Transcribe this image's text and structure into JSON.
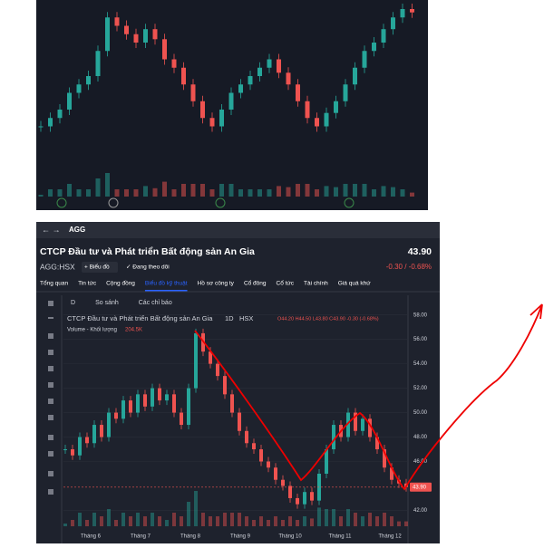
{
  "top_chart": {
    "closes": [
      30,
      35,
      40,
      50,
      55,
      60,
      75,
      95,
      90,
      85,
      80,
      88,
      82,
      70,
      65,
      55,
      45,
      35,
      30,
      40,
      50,
      55,
      60,
      65,
      70,
      62,
      55,
      45,
      35,
      30,
      38,
      45,
      55,
      65,
      75,
      80,
      88,
      95,
      100,
      98
    ]
  },
  "app": {
    "nav_symbol": "AGG",
    "company": "CTCP Đầu tư và Phát triển Bất động sản An Gia",
    "price": "43.90",
    "ticker": "AGG:HSX",
    "add_chart": "+ Biểu đồ",
    "following": "✓ Đang theo dõi",
    "change": "-0.30 / -0.68%",
    "tabs": [
      "Tổng quan",
      "Tin tức",
      "Cộng đồng",
      "Biểu đồ kỹ thuật",
      "Hồ sơ công ty",
      "Cổ đông",
      "Cổ tức",
      "Tài chính",
      "Giá quá khứ"
    ],
    "active_tab": 3,
    "toolbar": [
      "D",
      "So sánh",
      "Các chỉ báo"
    ]
  },
  "chart_data": {
    "type": "candlestick",
    "title": "CTCP Đầu tư và Phát triển Bất động sản An Gia",
    "interval": "1D",
    "exchange": "HSX",
    "ohlc": "O44.20 H44.50 L43.80 C43.90 -0.30 (-0.68%)",
    "volume_label": "Volume - Khối lượng",
    "volume_value": "204.5K",
    "categories": [
      "Tháng 6",
      "Tháng 7",
      "Tháng 8",
      "Tháng 9",
      "Tháng 10",
      "Tháng 11",
      "Tháng 12"
    ],
    "closes": [
      47,
      46.5,
      48,
      47.5,
      49,
      48,
      50,
      49.5,
      51,
      50,
      51.5,
      50.5,
      52,
      51,
      51.5,
      50,
      49,
      52,
      56.5,
      55,
      54,
      53,
      51.5,
      50,
      48.5,
      47.5,
      47,
      46,
      45.5,
      44.5,
      44,
      43,
      42.5,
      43.5,
      42.8,
      45,
      47,
      49,
      48,
      50,
      48.5,
      49.5,
      48,
      47,
      45.5,
      44.5,
      44.2,
      43.9
    ],
    "ylim": [
      40.4,
      58.2
    ],
    "yticks": [
      {
        "value": 58,
        "label": "58.00"
      },
      {
        "value": 56,
        "label": "56.00"
      },
      {
        "value": 54,
        "label": "54.00"
      },
      {
        "value": 52,
        "label": "52.00"
      },
      {
        "value": 50,
        "label": "50.00"
      },
      {
        "value": 48,
        "label": "48.00"
      },
      {
        "value": 46,
        "label": "46.00"
      },
      {
        "value": 42,
        "label": "42.00"
      }
    ],
    "last": {
      "value": 43.9,
      "label": "43.90"
    }
  }
}
